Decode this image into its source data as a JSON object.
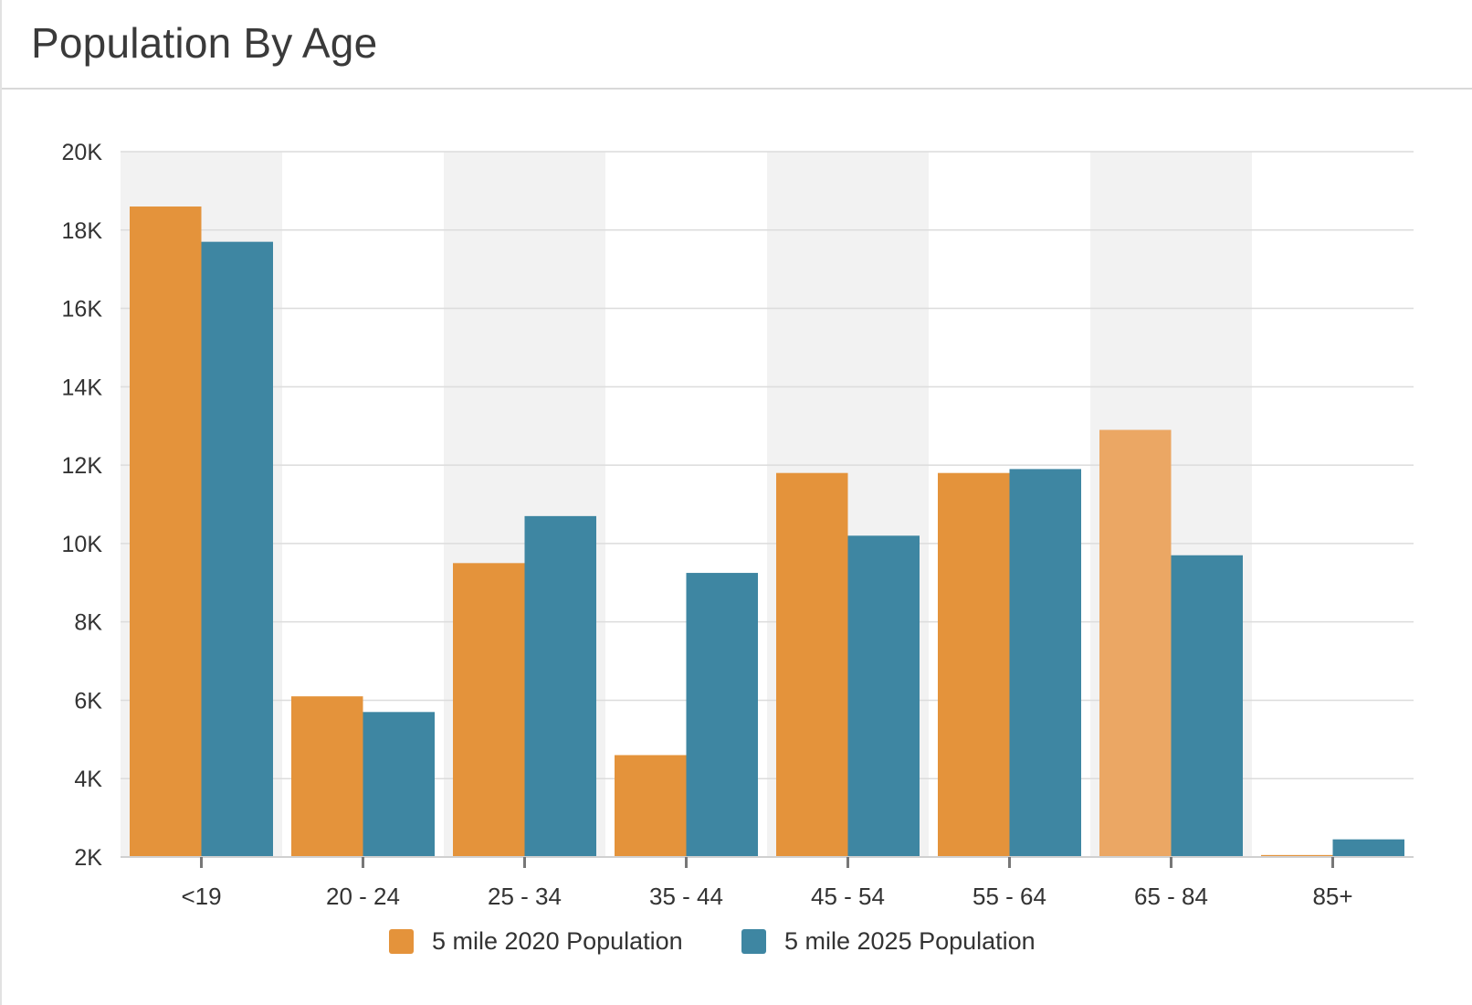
{
  "header": {
    "title": "Population By Age"
  },
  "chart_data": {
    "type": "bar",
    "categories": [
      "<19",
      "20 - 24",
      "25 - 34",
      "35 - 44",
      "45 - 54",
      "55 - 64",
      "65 - 84",
      "85+"
    ],
    "series": [
      {
        "name": "5 mile 2020 Population",
        "color": "#E4933B",
        "values": [
          18600,
          6100,
          9500,
          4600,
          11800,
          11800,
          12900,
          2050
        ]
      },
      {
        "name": "5 mile 2025 Population",
        "color": "#3E86A2",
        "values": [
          17700,
          5700,
          10700,
          9250,
          10200,
          11900,
          9700,
          2450
        ]
      }
    ],
    "ylim": [
      2000,
      20000
    ],
    "yticks": [
      {
        "value": 2000,
        "label": "2K"
      },
      {
        "value": 4000,
        "label": "4K"
      },
      {
        "value": 6000,
        "label": "6K"
      },
      {
        "value": 8000,
        "label": "8K"
      },
      {
        "value": 10000,
        "label": "10K"
      },
      {
        "value": 12000,
        "label": "12K"
      },
      {
        "value": 14000,
        "label": "14K"
      },
      {
        "value": 16000,
        "label": "16K"
      },
      {
        "value": 18000,
        "label": "18K"
      },
      {
        "value": 20000,
        "label": "20K"
      }
    ],
    "highlighted_point": {
      "series": 0,
      "category": "65 - 84",
      "color": "#EBA764"
    },
    "alternating_band_color": "#F2F2F2",
    "grid": true,
    "legend": "bottom-center"
  }
}
